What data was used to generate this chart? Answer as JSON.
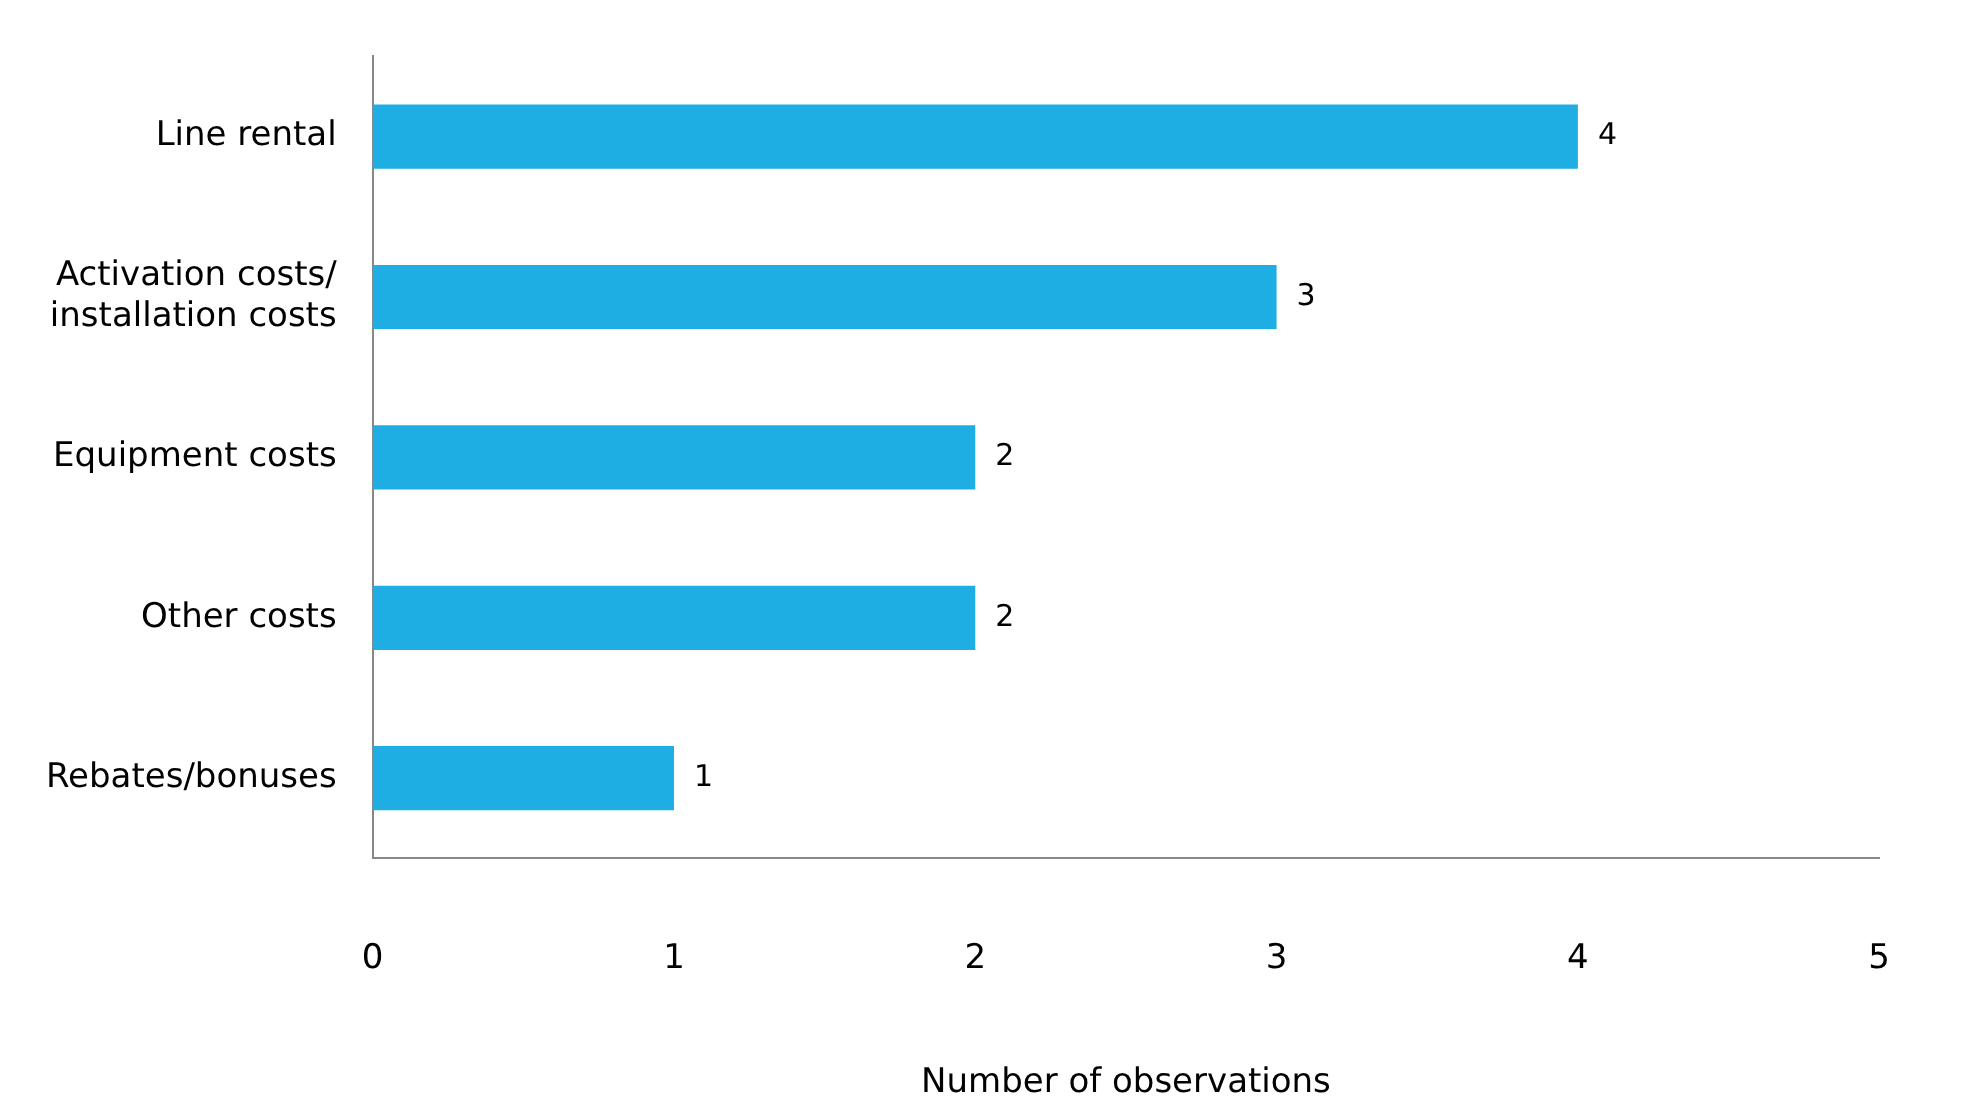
{
  "chart_data": {
    "type": "bar",
    "orientation": "horizontal",
    "xlabel": "Number of observations",
    "categories": [
      "Line rental",
      "Activation costs/\ninstallation costs",
      "Equipment costs",
      "Other costs",
      "Rebates/bonuses"
    ],
    "values": [
      4,
      3,
      2,
      2,
      1
    ],
    "color": "#1eaee4",
    "xlim": [
      0,
      5
    ],
    "xticks": [
      0,
      1,
      2,
      3,
      4,
      5
    ],
    "grid": false,
    "legend": false,
    "data_labels": true
  }
}
